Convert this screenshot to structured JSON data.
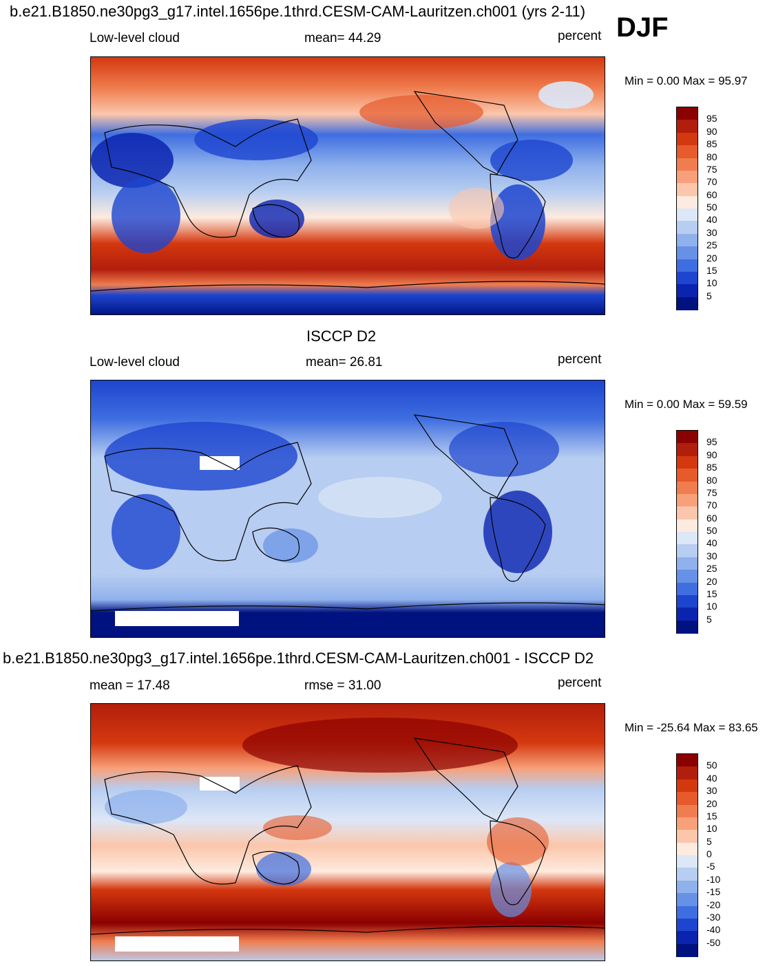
{
  "header": {
    "title": "b.e21.B1850.ne30pg3_g17.intel.1656pe.1thrd.CESM-CAM-Lauritzen.ch001 (yrs 2-11)",
    "season": "DJF"
  },
  "panels": [
    {
      "id": "model",
      "title": "",
      "left_label": "Low-level cloud",
      "center_label": "mean=  44.29",
      "right_label": "percent",
      "minmax": "Min =   0.00 Max =  95.97",
      "colorbar": {
        "labels": [
          "95",
          "90",
          "85",
          "80",
          "75",
          "70",
          "60",
          "50",
          "40",
          "30",
          "25",
          "20",
          "15",
          "10",
          "5"
        ],
        "colors": [
          "#8b0000",
          "#b21e0c",
          "#d4380f",
          "#e65a2c",
          "#f07d4f",
          "#f7a07a",
          "#fbc6ab",
          "#fdebdf",
          "#dce7f7",
          "#b7cdf1",
          "#8fb1ec",
          "#6691e6",
          "#3f6ee0",
          "#1d45cf",
          "#0b24b0",
          "#00127f"
        ]
      }
    },
    {
      "id": "obs",
      "title": "ISCCP D2",
      "left_label": "Low-level cloud",
      "center_label": "mean=  26.81",
      "right_label": "percent",
      "minmax": "Min =   0.00 Max =  59.59",
      "colorbar": {
        "labels": [
          "95",
          "90",
          "85",
          "80",
          "75",
          "70",
          "60",
          "50",
          "40",
          "30",
          "25",
          "20",
          "15",
          "10",
          "5"
        ],
        "colors": [
          "#8b0000",
          "#b21e0c",
          "#d4380f",
          "#e65a2c",
          "#f07d4f",
          "#f7a07a",
          "#fbc6ab",
          "#fdebdf",
          "#dce7f7",
          "#b7cdf1",
          "#8fb1ec",
          "#6691e6",
          "#3f6ee0",
          "#1d45cf",
          "#0b24b0",
          "#00127f"
        ]
      }
    },
    {
      "id": "diff",
      "title": "b.e21.B1850.ne30pg3_g17.intel.1656pe.1thrd.CESM-CAM-Lauritzen.ch001 - ISCCP D2",
      "left_label": "mean =  17.48",
      "center_label": "rmse =  31.00",
      "right_label": "percent",
      "minmax": "Min = -25.64 Max =  83.65",
      "colorbar": {
        "labels": [
          "50",
          "40",
          "30",
          "20",
          "15",
          "10",
          "5",
          "0",
          "-5",
          "-10",
          "-15",
          "-20",
          "-30",
          "-40",
          "-50"
        ],
        "colors": [
          "#8b0000",
          "#b21e0c",
          "#d4380f",
          "#e65a2c",
          "#f07d4f",
          "#f7a07a",
          "#fbc6ab",
          "#fdebdf",
          "#dce7f7",
          "#b7cdf1",
          "#8fb1ec",
          "#6691e6",
          "#3f6ee0",
          "#1d45cf",
          "#0b24b0",
          "#00127f"
        ]
      }
    }
  ]
}
